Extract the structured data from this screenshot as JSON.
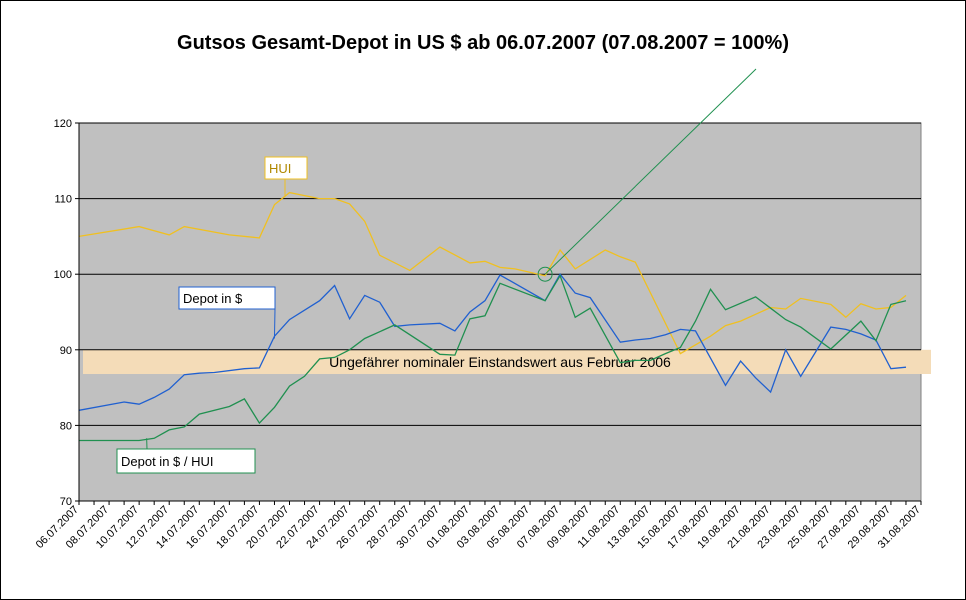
{
  "chart_data": {
    "type": "line",
    "title": "Gutsos Gesamt-Depot in US $ ab 06.07.2007 (07.08.2007 = 100%)",
    "ylim": [
      70,
      120
    ],
    "yticks": [
      70,
      80,
      90,
      100,
      110,
      120
    ],
    "xlim": [
      0,
      56
    ],
    "x_tick_labels": [
      "06.07.2007",
      "08.07.2007",
      "10.07.2007",
      "12.07.2007",
      "14.07.2007",
      "16.07.2007",
      "18.07.2007",
      "20.07.2007",
      "22.07.2007",
      "24.07.2007",
      "26.07.2007",
      "28.07.2007",
      "30.07.2007",
      "01.08.2007",
      "03.08.2007",
      "05.08.2007",
      "07.08.2007",
      "09.08.2007",
      "11.08.2007",
      "13.08.2007",
      "15.08.2007",
      "17.08.2007",
      "19.08.2007",
      "21.08.2007",
      "23.08.2007",
      "25.08.2007",
      "27.08.2007",
      "29.08.2007",
      "31.08.2007"
    ],
    "grid": true,
    "band": {
      "from": 86.8,
      "to": 90.0,
      "label": "Ungefährer nominaler Einstandswert aus Februar 2006",
      "color": "#f4dcb8"
    },
    "series": [
      {
        "name": "HUI",
        "color": "#f0c020",
        "x": [
          0,
          4,
          6,
          7,
          10,
          12,
          13,
          14,
          16,
          17,
          18,
          19,
          20,
          22,
          24,
          26,
          27,
          28,
          29,
          31,
          32,
          33,
          35,
          36,
          37,
          40,
          42,
          43,
          44,
          46,
          47,
          48,
          50,
          51,
          52,
          53,
          54,
          55
        ],
        "y": [
          105,
          106.3,
          105.2,
          106.3,
          105.2,
          104.8,
          109.2,
          110.8,
          110,
          110,
          109.3,
          107,
          102.5,
          100.5,
          103.6,
          101.5,
          101.7,
          100.9,
          100.7,
          99.8,
          103.2,
          100.7,
          103.2,
          102.3,
          101.6,
          89.5,
          91.8,
          93.2,
          93.8,
          95.6,
          95.4,
          96.8,
          96,
          94.3,
          96.1,
          95.4,
          95.6,
          97.2
        ]
      },
      {
        "name": "Depot in $",
        "color": "#2060d0",
        "x": [
          0,
          3,
          4,
          5,
          6,
          7,
          8,
          9,
          11,
          12,
          13,
          14,
          16,
          17,
          18,
          19,
          20,
          21,
          22,
          24,
          25,
          26,
          27,
          28,
          31,
          32,
          33,
          34,
          36,
          37,
          38,
          39,
          40,
          41,
          43,
          44,
          45,
          46,
          47,
          48,
          50,
          51,
          52,
          53,
          54,
          55
        ],
        "y": [
          82,
          83.1,
          82.8,
          83.7,
          84.8,
          86.7,
          86.9,
          87,
          87.5,
          87.6,
          91.8,
          94,
          96.5,
          98.5,
          94.1,
          97.2,
          96.3,
          93.1,
          93.3,
          93.5,
          92.5,
          95,
          96.5,
          99.9,
          96.5,
          100,
          97.5,
          96.9,
          91,
          91.3,
          91.5,
          92,
          92.7,
          92.5,
          85.3,
          88.5,
          86.3,
          84.4,
          90,
          86.5,
          93,
          92.7,
          92.1,
          91.3,
          87.5,
          87.7
        ]
      },
      {
        "name": "Depot in $ / HUI",
        "color": "#209050",
        "x": [
          0,
          4,
          5,
          6,
          7,
          8,
          10,
          11,
          12,
          13,
          14,
          15,
          16,
          17,
          18,
          19,
          21,
          24,
          25,
          26,
          27,
          28,
          31,
          32,
          33,
          34,
          36,
          37,
          38,
          39,
          40,
          41,
          42,
          43,
          45,
          46,
          47,
          48,
          50,
          52,
          53,
          54,
          55
        ],
        "y": [
          78,
          78,
          78.3,
          79.4,
          79.8,
          81.5,
          82.5,
          83.5,
          80.3,
          82.4,
          85.2,
          86.5,
          88.8,
          89,
          90,
          91.5,
          93.3,
          89.4,
          89.3,
          94.1,
          94.5,
          98.8,
          96.5,
          99.8,
          94.3,
          95.5,
          88.3,
          88.6,
          88.6,
          89.5,
          90.3,
          93.8,
          98,
          95.3,
          97,
          95.5,
          94,
          93,
          90.1,
          93.8,
          91.2,
          96,
          96.5
        ]
      }
    ],
    "annotations": [
      {
        "text": "HUI",
        "series": 0
      },
      {
        "text": "Depot in $",
        "series": 1
      },
      {
        "text": "Depot in $ / HUI",
        "series": 2
      }
    ]
  }
}
